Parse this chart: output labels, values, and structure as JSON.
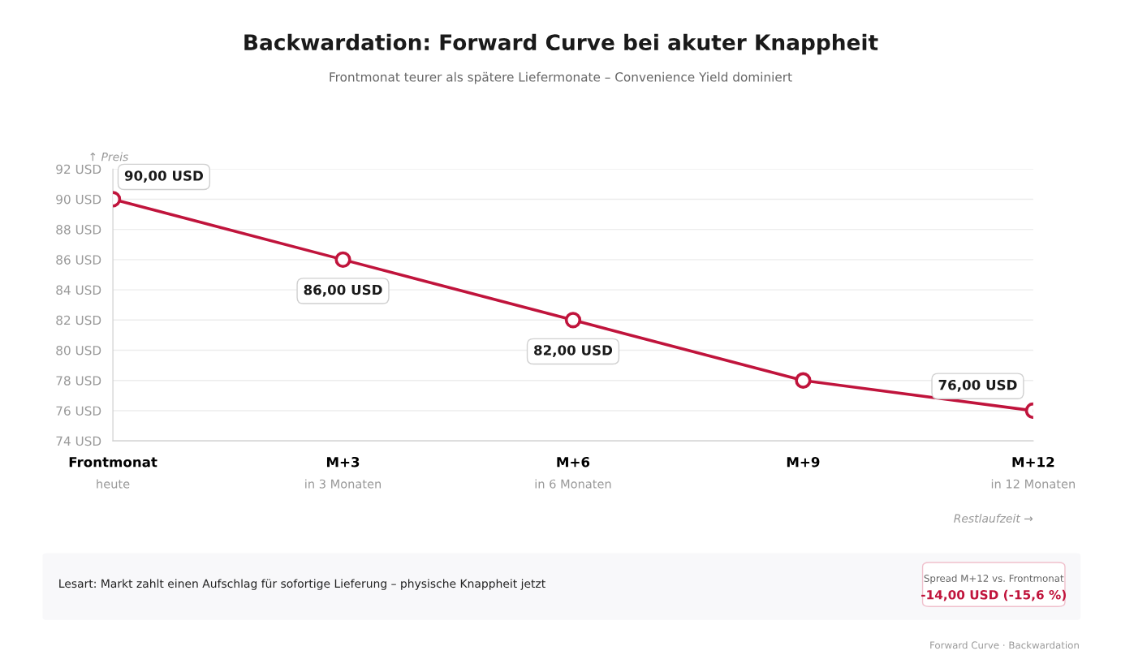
{
  "chart_data": {
    "type": "line",
    "title": "Backwardation: Forward Curve bei akuter Knappheit",
    "subtitle": "Frontmonat teurer als spätere Liefermonate – Convenience Yield dominiert",
    "ylabel": "↑ Preis",
    "xlabel": "Restlaufzeit →",
    "categories": [
      "Frontmonat\nheute",
      "M+3\nin 3 Monaten",
      "M+6\nin 6 Monaten",
      "M+9",
      "M+12\nin 12 Monaten"
    ],
    "series": [
      {
        "color": "#c0143c",
        "values": [
          90,
          86,
          82,
          78,
          76
        ],
        "value_labels": [
          "90,00 USD",
          "86,00 USD",
          "82,00 USD",
          null,
          "76,00 USD"
        ]
      }
    ],
    "ylim": [
      74,
      92
    ],
    "yticks": [
      {
        "value": 74,
        "label": "74 USD"
      },
      {
        "value": 76,
        "label": "76 USD"
      },
      {
        "value": 78,
        "label": "78 USD"
      },
      {
        "value": 80,
        "label": "80 USD"
      },
      {
        "value": 82,
        "label": "82 USD"
      },
      {
        "value": 84,
        "label": "84 USD"
      },
      {
        "value": 86,
        "label": "86 USD"
      },
      {
        "value": 88,
        "label": "88 USD"
      },
      {
        "value": 90,
        "label": "90 USD"
      },
      {
        "value": 92,
        "label": "92 USD"
      }
    ],
    "grid": "y",
    "marker": "circle",
    "line_style": "solid",
    "annotations": [
      "Lesart: Markt zahlt einen Aufschlag für sofortige Lieferung – physische Knappheit jetzt",
      "Spread M+12 vs. Frontmonat",
      "-14,00 USD (-15,6 %)",
      "Forward Curve · Backwardation"
    ]
  }
}
